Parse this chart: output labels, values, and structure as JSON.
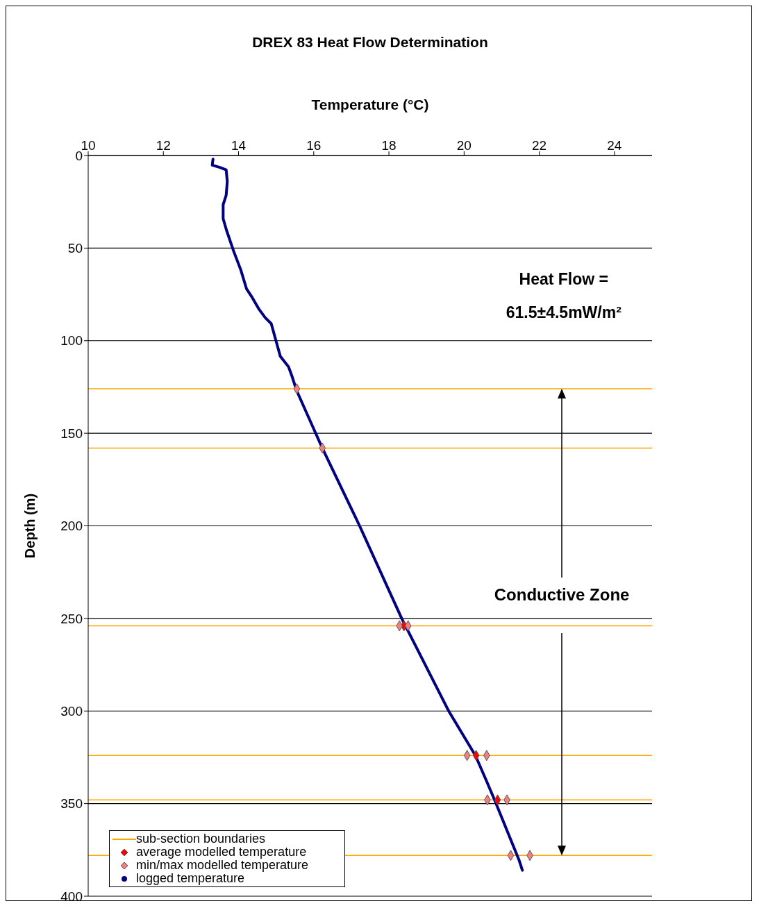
{
  "chart_data": {
    "type": "scatter",
    "title": "DREX 83 Heat Flow Determination",
    "xlabel": "Temperature (°C)",
    "ylabel": "Depth (m)",
    "xlim": [
      10,
      25
    ],
    "xticks": [
      10,
      12,
      14,
      16,
      18,
      20,
      22,
      24
    ],
    "ylim": [
      400,
      0
    ],
    "yticks": [
      0,
      50,
      100,
      150,
      200,
      250,
      300,
      350,
      400
    ],
    "grid": "y",
    "legend": "bottom left",
    "annotations": [
      "Heat Flow =",
      "61.5±4.5mW/m²",
      "Conductive Zone"
    ],
    "series": [
      {
        "name": "sub-section boundaries",
        "type": "line",
        "color": "#ffa500",
        "marker": "none",
        "x": [
          10,
          25
        ],
        "values": [
          126,
          126
        ]
      },
      {
        "type": "line",
        "color": "#ffa500",
        "marker": "none",
        "x": [
          10,
          25
        ],
        "values": [
          158,
          158
        ]
      },
      {
        "type": "line",
        "color": "#ffa500",
        "marker": "none",
        "x": [
          10,
          25
        ],
        "values": [
          254,
          254
        ]
      },
      {
        "type": "line",
        "color": "#ffa500",
        "marker": "none",
        "x": [
          10,
          25
        ],
        "values": [
          324,
          324
        ]
      },
      {
        "type": "line",
        "color": "#ffa500",
        "marker": "none",
        "x": [
          10,
          25
        ],
        "values": [
          348,
          348
        ]
      },
      {
        "type": "line",
        "color": "#ffa500",
        "marker": "none",
        "x": [
          10,
          25
        ],
        "values": [
          378,
          378
        ]
      },
      {
        "name": "average modelled temperature",
        "color": "#ff0000",
        "marker": "diamond",
        "x": [
          18.4,
          20.32,
          20.89
        ],
        "values": [
          254,
          324,
          348
        ]
      },
      {
        "name": "min/max modelled temperature",
        "color": "#f08080",
        "marker": "diamond",
        "x": [
          15.55,
          16.23,
          18.28,
          18.51,
          20.08,
          20.6,
          20.62,
          21.14,
          21.24,
          21.75
        ],
        "values": [
          126,
          158,
          254,
          254,
          324,
          324,
          348,
          348,
          378,
          378
        ]
      },
      {
        "name": "logged temperature",
        "type": "line",
        "color": "#000080",
        "marker": "none",
        "x": [
          13.32,
          13.3,
          13.5,
          13.67,
          13.7,
          13.67,
          13.59,
          13.59,
          13.68,
          13.87,
          14.06,
          14.21,
          14.37,
          14.55,
          14.71,
          14.87,
          14.99,
          15.11,
          15.33,
          15.43,
          15.54,
          16.23,
          17.22,
          18.34,
          19.59,
          20.3,
          20.59,
          20.81,
          21.46,
          21.55
        ],
        "values": [
          2,
          5.2,
          6.4,
          7.7,
          14,
          21.5,
          26.6,
          34.1,
          40.4,
          51.7,
          61.8,
          71.9,
          76.9,
          83.2,
          87.6,
          90.8,
          99.6,
          108.4,
          114.1,
          119.7,
          126.7,
          158.1,
          200,
          250,
          300,
          324,
          337.5,
          348,
          380.4,
          386
        ]
      }
    ]
  }
}
